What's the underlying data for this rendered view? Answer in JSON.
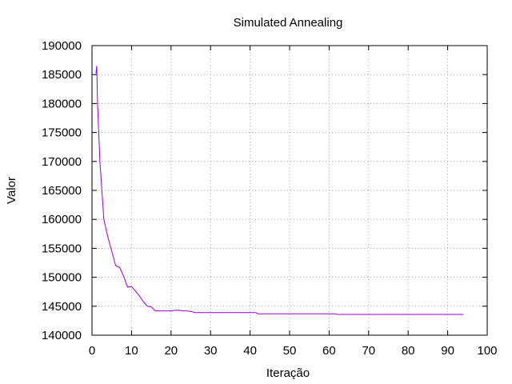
{
  "chart_data": {
    "type": "line",
    "title": "Simulated Annealing",
    "xlabel": "Iteração",
    "ylabel": "Valor",
    "xlim": [
      0,
      100
    ],
    "ylim": [
      140000,
      190000
    ],
    "x_ticks": [
      0,
      10,
      20,
      30,
      40,
      50,
      60,
      70,
      80,
      90,
      100
    ],
    "y_ticks": [
      140000,
      145000,
      150000,
      155000,
      160000,
      165000,
      170000,
      175000,
      180000,
      185000,
      190000
    ],
    "grid": true,
    "grid_style": "dotted",
    "legend": false,
    "series": [
      {
        "color": "#9400d3",
        "points": [
          [
            1,
            185200
          ],
          [
            1.2,
            186500
          ],
          [
            1.4,
            180000
          ],
          [
            1.7,
            175000
          ],
          [
            2,
            170000
          ],
          [
            2.5,
            165000
          ],
          [
            3,
            160000
          ],
          [
            4,
            157000
          ],
          [
            5,
            154500
          ],
          [
            6,
            152000
          ],
          [
            7,
            151700
          ],
          [
            8,
            150200
          ],
          [
            9,
            148300
          ],
          [
            10,
            148400
          ],
          [
            10.5,
            148000
          ],
          [
            11,
            147600
          ],
          [
            12,
            146800
          ],
          [
            13,
            145800
          ],
          [
            14,
            145000
          ],
          [
            15,
            144900
          ],
          [
            16,
            144200
          ],
          [
            17,
            144200
          ],
          [
            18,
            144200
          ],
          [
            19,
            144200
          ],
          [
            20,
            144200
          ],
          [
            21,
            144300
          ],
          [
            22,
            144300
          ],
          [
            23,
            144200
          ],
          [
            24,
            144200
          ],
          [
            25,
            144100
          ],
          [
            26,
            143900
          ],
          [
            30,
            143900
          ],
          [
            35,
            143900
          ],
          [
            40,
            143900
          ],
          [
            41.5,
            143900
          ],
          [
            42,
            143700
          ],
          [
            50,
            143700
          ],
          [
            55,
            143700
          ],
          [
            60,
            143700
          ],
          [
            61.5,
            143700
          ],
          [
            62,
            143600
          ],
          [
            70,
            143600
          ],
          [
            80,
            143600
          ],
          [
            90,
            143600
          ],
          [
            94,
            143600
          ]
        ]
      }
    ]
  }
}
